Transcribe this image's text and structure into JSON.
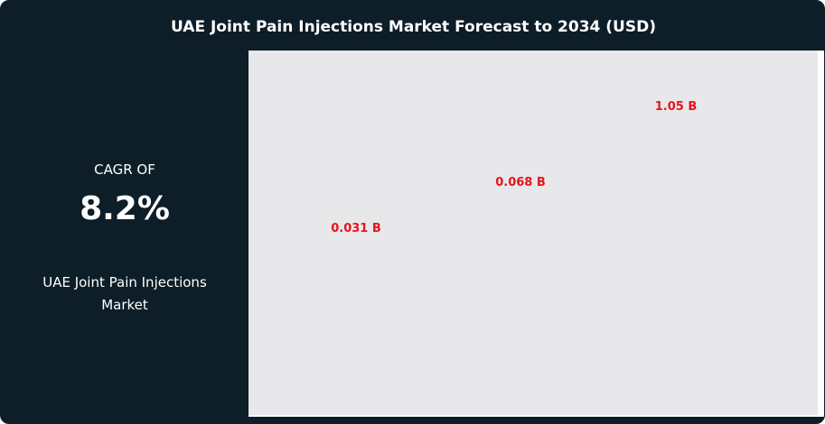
{
  "title": "UAE Joint Pain Injections Market Forecast to 2034 (USD)",
  "summary": {
    "cagr_label": "CAGR OF",
    "cagr_value": "8.2%",
    "market_name": "UAE Joint Pain Injections Market"
  },
  "colors": {
    "background": "#0d1e28",
    "plot_background": "#e8e7ea",
    "label": "#e8141b"
  },
  "chart_data": {
    "type": "scatter",
    "title": "UAE Joint Pain Injections Market Forecast to 2034 (USD)",
    "unit": "B",
    "points": [
      {
        "value": 0.031,
        "label": "0.031 B"
      },
      {
        "value": 0.068,
        "label": "0.068 B"
      },
      {
        "value": 1.05,
        "label": "1.05 B"
      }
    ],
    "grid": false
  }
}
